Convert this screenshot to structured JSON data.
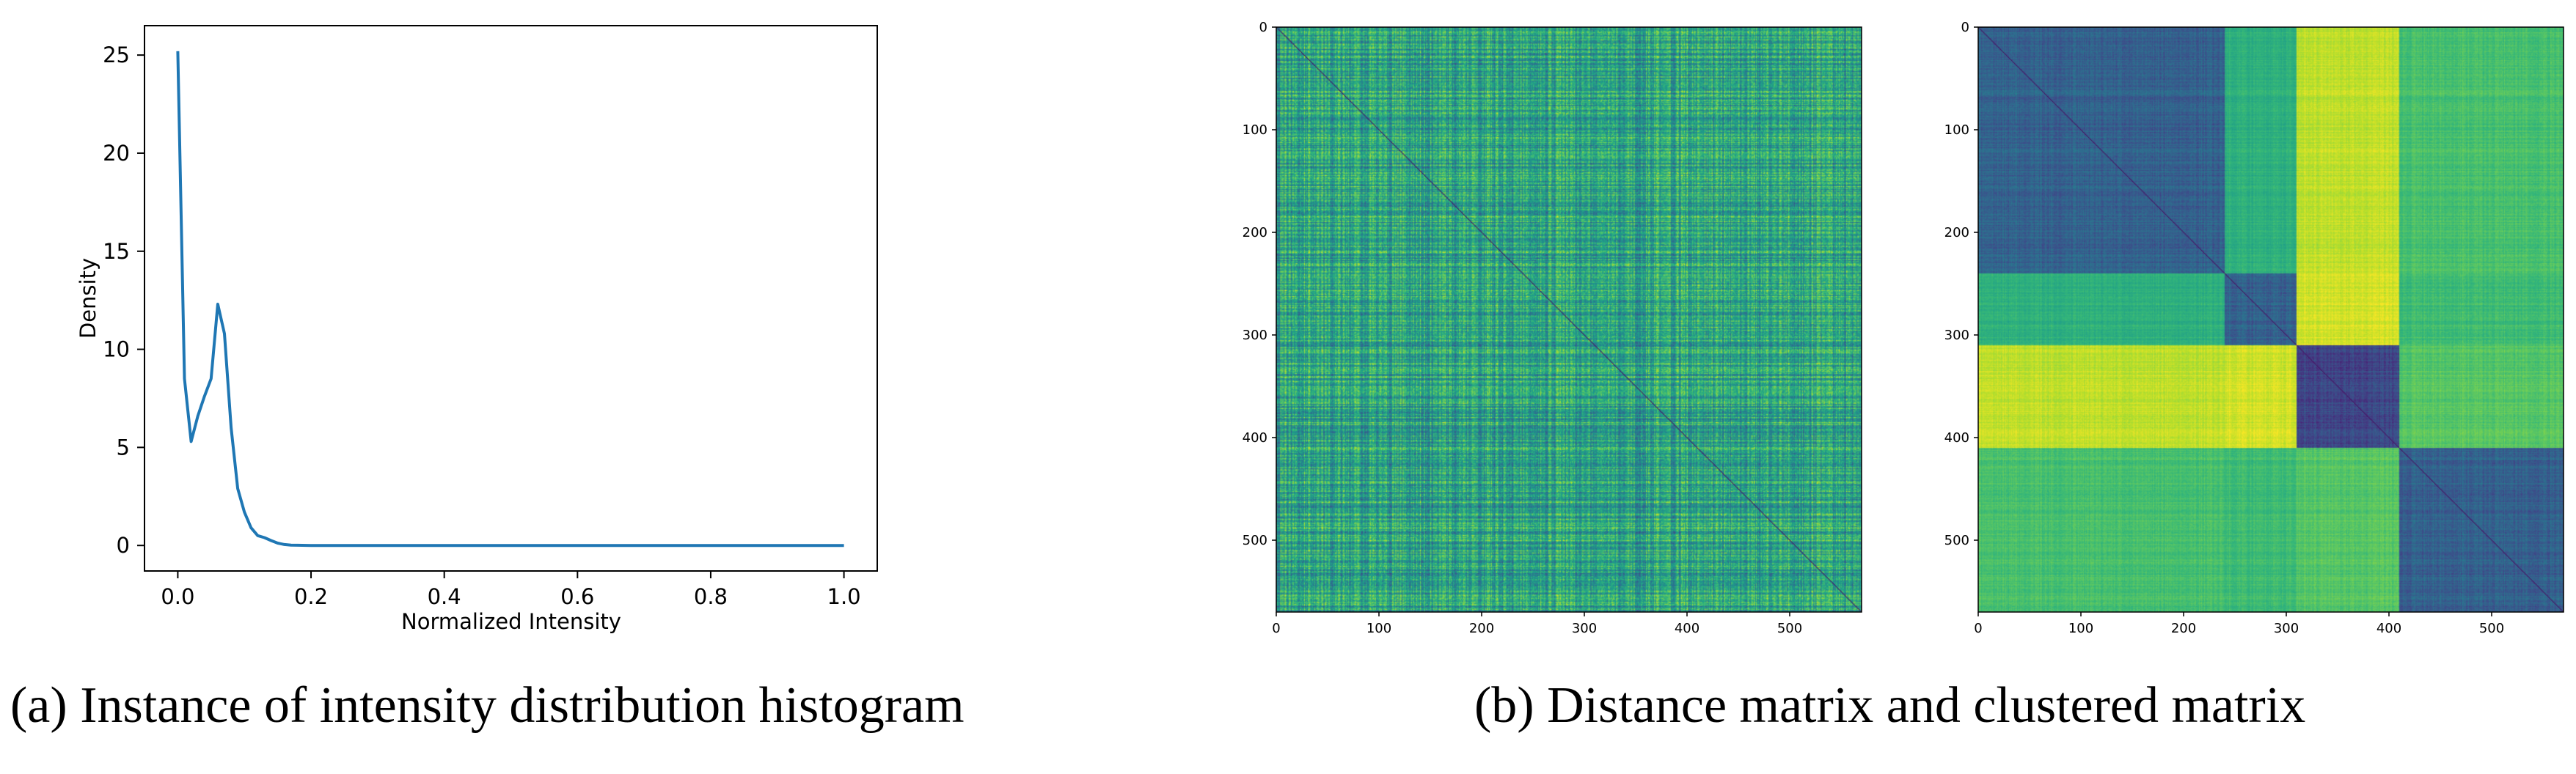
{
  "captions": {
    "a": "(a) Instance of intensity distribution histogram",
    "b": "(b) Distance matrix and clustered matrix"
  },
  "chart_data": [
    {
      "type": "line",
      "xlabel": "Normalized Intensity",
      "ylabel": "Density",
      "xlim": [
        -0.05,
        1.05
      ],
      "ylim": [
        -1.3,
        26.5
      ],
      "xticks": [
        "0.0",
        "0.2",
        "0.4",
        "0.6",
        "0.8",
        "1.0"
      ],
      "yticks": [
        "0",
        "5",
        "10",
        "15",
        "20",
        "25"
      ],
      "grid": false,
      "color": "#1f77b4",
      "x": [
        0.0,
        0.01,
        0.02,
        0.03,
        0.04,
        0.05,
        0.06,
        0.07,
        0.08,
        0.09,
        0.1,
        0.11,
        0.12,
        0.13,
        0.14,
        0.15,
        0.16,
        0.17,
        0.18,
        0.2,
        0.25,
        0.3,
        0.4,
        0.5,
        0.6,
        0.7,
        0.8,
        0.9,
        1.0
      ],
      "y": [
        25.2,
        8.5,
        5.3,
        6.6,
        7.6,
        8.5,
        12.3,
        10.8,
        6.0,
        2.9,
        1.7,
        0.9,
        0.5,
        0.4,
        0.25,
        0.12,
        0.05,
        0.02,
        0.01,
        0.0,
        0.0,
        0.0,
        0.0,
        0.0,
        0.0,
        0.0,
        0.0,
        0.0,
        0.0
      ]
    },
    {
      "type": "heatmap",
      "title": "",
      "xticks": [
        "0",
        "100",
        "200",
        "300",
        "400",
        "500"
      ],
      "yticks": [
        "0",
        "100",
        "200",
        "300",
        "400",
        "500"
      ],
      "size": 570,
      "colormap": "viridis",
      "pattern": "unclustered"
    },
    {
      "type": "heatmap",
      "title": "",
      "xticks": [
        "0",
        "100",
        "200",
        "300",
        "400",
        "500"
      ],
      "yticks": [
        "0",
        "100",
        "200",
        "300",
        "400",
        "500"
      ],
      "size": 570,
      "colormap": "viridis",
      "pattern": "clustered",
      "blocks": [
        0,
        240,
        310,
        410,
        570
      ]
    }
  ]
}
